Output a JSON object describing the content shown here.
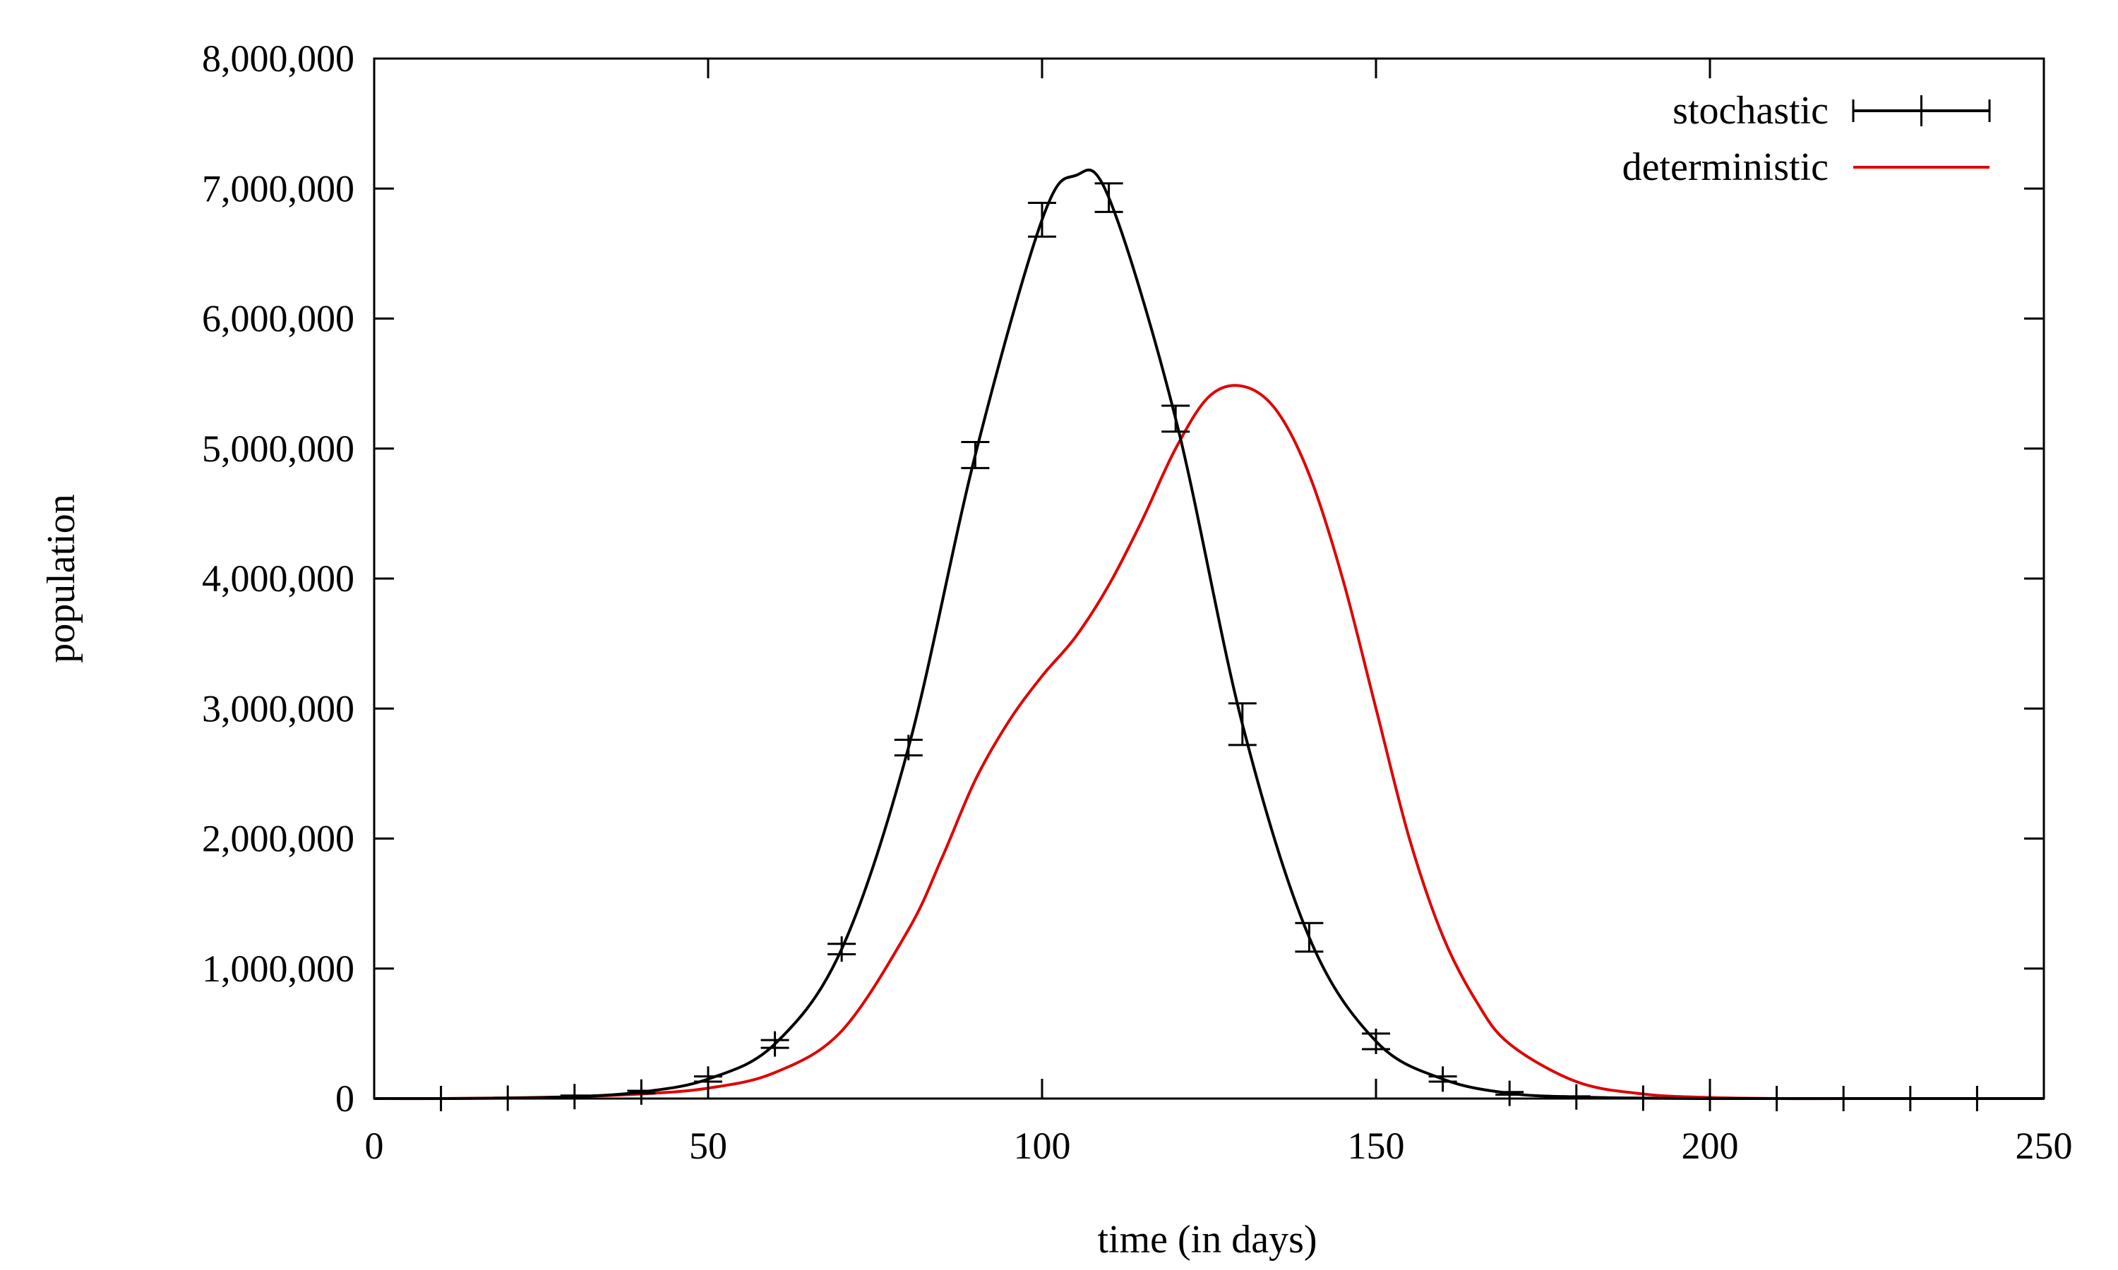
{
  "chart_data": {
    "type": "line",
    "title": "",
    "xlabel": "time (in days)",
    "ylabel": "population",
    "xlim": [
      0,
      250
    ],
    "ylim": [
      0,
      8000000
    ],
    "x_ticks": [
      0,
      50,
      100,
      150,
      200,
      250
    ],
    "x_tick_labels": [
      "0",
      "50",
      "100",
      "150",
      "200",
      "250"
    ],
    "y_ticks": [
      0,
      1000000,
      2000000,
      3000000,
      4000000,
      5000000,
      6000000,
      7000000,
      8000000
    ],
    "y_tick_labels": [
      "0",
      "1,000,000",
      "2,000,000",
      "3,000,000",
      "4,000,000",
      "5,000,000",
      "6,000,000",
      "7,000,000",
      "8,000,000"
    ],
    "grid": false,
    "legend_position": "top-right",
    "series": [
      {
        "name": "stochastic",
        "color": "#000000",
        "errorbars": true,
        "x": [
          0,
          10,
          20,
          30,
          40,
          50,
          60,
          70,
          80,
          90,
          100,
          105,
          110,
          120,
          130,
          140,
          150,
          160,
          170,
          180,
          190,
          200,
          210,
          220,
          230,
          240,
          250
        ],
        "y": [
          0,
          0,
          3000,
          15000,
          50000,
          150000,
          420000,
          1150000,
          2700000,
          4950000,
          6760000,
          7100000,
          6930000,
          5230000,
          2880000,
          1240000,
          440000,
          150000,
          40000,
          12000,
          3000,
          0,
          0,
          0,
          0,
          0,
          0
        ],
        "error": [
          0,
          0,
          3000,
          8000,
          10000,
          20000,
          30000,
          40000,
          60000,
          100000,
          130000,
          0,
          110000,
          100000,
          160000,
          110000,
          60000,
          20000,
          10000,
          5000,
          3000,
          0,
          0,
          0,
          0,
          0,
          0
        ]
      },
      {
        "name": "deterministic",
        "color": "#e00000",
        "x": [
          0,
          10,
          20,
          30,
          40,
          50,
          60,
          70,
          80,
          85,
          90,
          95,
          100,
          105,
          110,
          115,
          120,
          125,
          130,
          135,
          140,
          145,
          150,
          155,
          160,
          165,
          170,
          180,
          190,
          200,
          210,
          220,
          230,
          240,
          250
        ],
        "y": [
          0,
          0,
          5000,
          15000,
          35000,
          80000,
          200000,
          520000,
          1300000,
          1850000,
          2450000,
          2900000,
          3250000,
          3550000,
          3950000,
          4450000,
          5000000,
          5400000,
          5480000,
          5300000,
          4800000,
          4000000,
          3000000,
          2000000,
          1250000,
          750000,
          420000,
          130000,
          35000,
          8000,
          0,
          0,
          0,
          0,
          0
        ]
      }
    ]
  }
}
